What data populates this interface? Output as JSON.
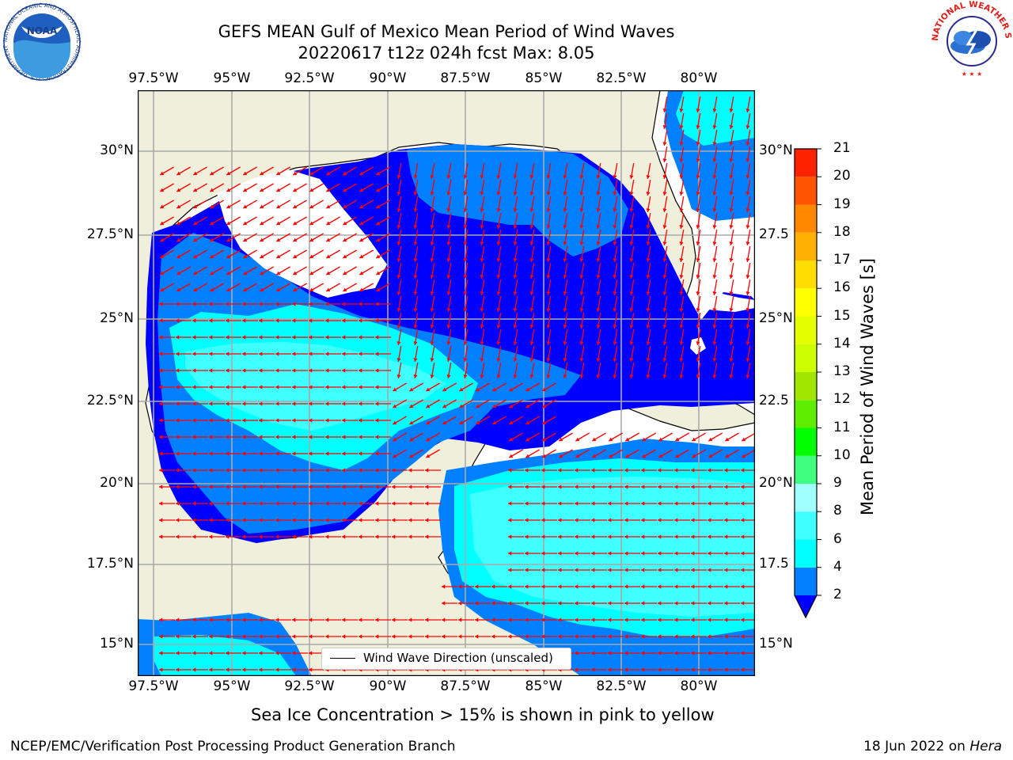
{
  "title": {
    "line1": "GEFS MEAN Gulf of Mexico Mean Period of Wind Waves",
    "line2": "20220617 t12z 024h fcst   Max: 8.05"
  },
  "axes": {
    "lon_labels": [
      "97.5°W",
      "95°W",
      "92.5°W",
      "90°W",
      "87.5°W",
      "85°W",
      "82.5°W",
      "80°W"
    ],
    "lat_labels_left": [
      "30°N",
      "27.5°N",
      "25°N",
      "22.5°N",
      "20°N",
      "17.5°N",
      "15°N"
    ],
    "lat_labels_right": [
      "30°N",
      "27.5",
      "25°N",
      "22.5",
      "20°N",
      "17.5",
      "15°N"
    ]
  },
  "legend": {
    "label": "Wind Wave Direction (unscaled)"
  },
  "colorbar": {
    "title": "Mean Period of Wind Waves [s]",
    "levels": [
      "2",
      "4",
      "6",
      "8",
      "9",
      "10",
      "11",
      "12",
      "13",
      "14",
      "15",
      "16",
      "17",
      "18",
      "19",
      "20",
      "21"
    ],
    "colors": [
      "#0080ff",
      "#00ffff",
      "#40ffff",
      "#a0ffff",
      "#40ff80",
      "#00ff00",
      "#60ee00",
      "#a0e600",
      "#ccff00",
      "#e6ff00",
      "#ffff00",
      "#ffdd00",
      "#ffb000",
      "#ff8800",
      "#ff5500",
      "#ff2200"
    ],
    "under_color": "#0000ff"
  },
  "note": "Sea Ice Concentration > 15% is shown in pink to yellow",
  "footer": {
    "left": "NCEP/EMC/Verification Post Processing Product Generation Branch",
    "date": "18 Jun 2022 on ",
    "machine": "Hera"
  },
  "logos": {
    "noaa": "NOAA",
    "noaa_ring": "NATIONAL OCEANIC AND ATMOSPHERIC ADMINISTRATION · U.S. DEPARTMENT OF COMMERCE",
    "nws_ring": "NATIONAL WEATHER SERVICE"
  }
}
